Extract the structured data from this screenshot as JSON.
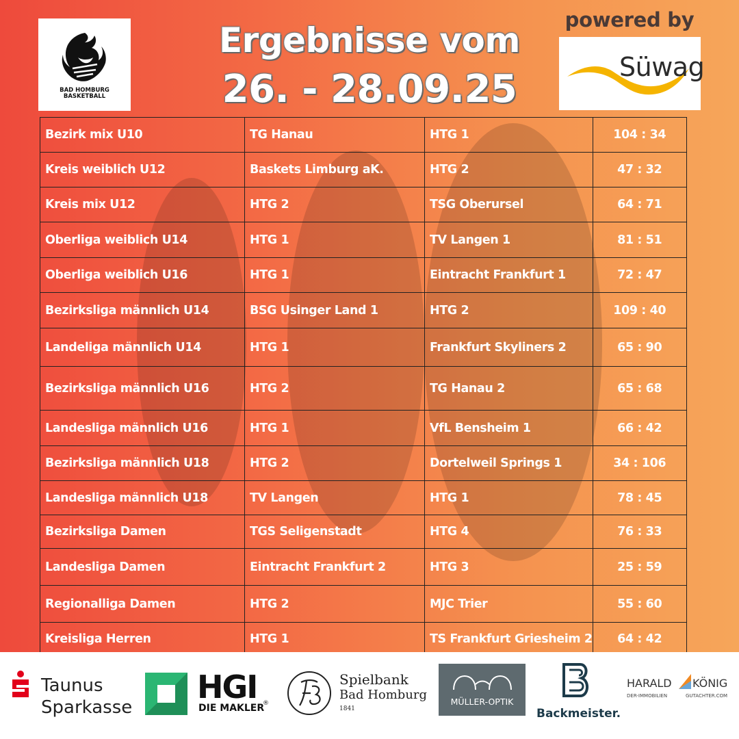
{
  "header": {
    "title_line1": "Ergebnisse vom",
    "title_line2": "26. - 28.09.25",
    "powered_by": "powered by",
    "sponsor_name": "Süwag",
    "club_logo_text_line1": "BAD HOMBURG",
    "club_logo_text_line2": "BASKETBALL"
  },
  "results": [
    {
      "league": "Bezirk mix U10",
      "home": "TG Hanau",
      "away": "HTG 1",
      "score": "104 : 34"
    },
    {
      "league": "Kreis weiblich U12",
      "home": "Baskets Limburg aK.",
      "away": "HTG 2",
      "score": "47 : 32"
    },
    {
      "league": "Kreis mix U12",
      "home": "HTG 2",
      "away": "TSG Oberursel",
      "score": "64 : 71"
    },
    {
      "league": "Oberliga weiblich U14",
      "home": "HTG 1",
      "away": "TV Langen 1",
      "score": "81 : 51"
    },
    {
      "league": "Oberliga weiblich U16",
      "home": "HTG 1",
      "away": "Eintracht Frankfurt 1",
      "score": "72 : 47"
    },
    {
      "league": "Bezirksliga männlich U14",
      "home": "BSG Usinger Land 1",
      "away": "HTG 2",
      "score": "109 : 40"
    },
    {
      "league": "Landeliga männlich U14",
      "home": "HTG 1",
      "away": "Frankfurt Skyliners 2",
      "score": "65 : 90"
    },
    {
      "league": "Bezirksliga männlich U16",
      "home": "HTG 2",
      "away": "TG Hanau 2",
      "score": "65 : 68"
    },
    {
      "league": "Landesliga männlich U16",
      "home": "HTG 1",
      "away": "VfL Bensheim 1",
      "score": "66 : 42"
    },
    {
      "league": "Bezirksliga männlich U18",
      "home": "HTG 2",
      "away": "Dortelweil Springs 1",
      "score": "34 : 106"
    },
    {
      "league": "Landesliga männlich U18",
      "home": "TV Langen",
      "away": "HTG 1",
      "score": "78 : 45"
    },
    {
      "league": "Bezirksliga Damen",
      "home": "TGS Seligenstadt",
      "away": "HTG 4",
      "score": "76 : 33"
    },
    {
      "league": "Landesliga Damen",
      "home": "Eintracht Frankfurt 2",
      "away": "HTG 3",
      "score": "25 : 59"
    },
    {
      "league": "Regionalliga Damen",
      "home": "HTG 2",
      "away": "MJC Trier",
      "score": "55 : 60"
    },
    {
      "league": "Kreisliga Herren",
      "home": "HTG 1",
      "away": "TS Frankfurt Griesheim 2",
      "score": "64 : 42"
    }
  ],
  "sponsors": {
    "sparkasse_line1": "Taunus",
    "sparkasse_line2": "Sparkasse",
    "hgi_name": "HGI",
    "hgi_sub": "DIE MAKLER",
    "hgi_reg": "®",
    "spielbank_line1": "Spielbank",
    "spielbank_line2": "Bad Homburg",
    "spielbank_year": "1841",
    "optik": "MÜLLER-OPTIK",
    "backmeister": "Backmeister.",
    "harald_name": "HARALD",
    "harald_surname": "KÖNIG",
    "harald_sub1": "DER-IMMOBILIEN",
    "harald_sub2": "GUTACHTER.COM"
  },
  "colors": {
    "gradient_left": "#ee4a3c",
    "gradient_right": "#f6a65a",
    "table_text": "#ffffff",
    "sparkasse_red": "#e2001a",
    "hgi_green": "#2bb673",
    "optik_bg": "#5e6a6f",
    "harald_orange": "#f08a24",
    "sponsor_yellow": "#f5b400"
  }
}
